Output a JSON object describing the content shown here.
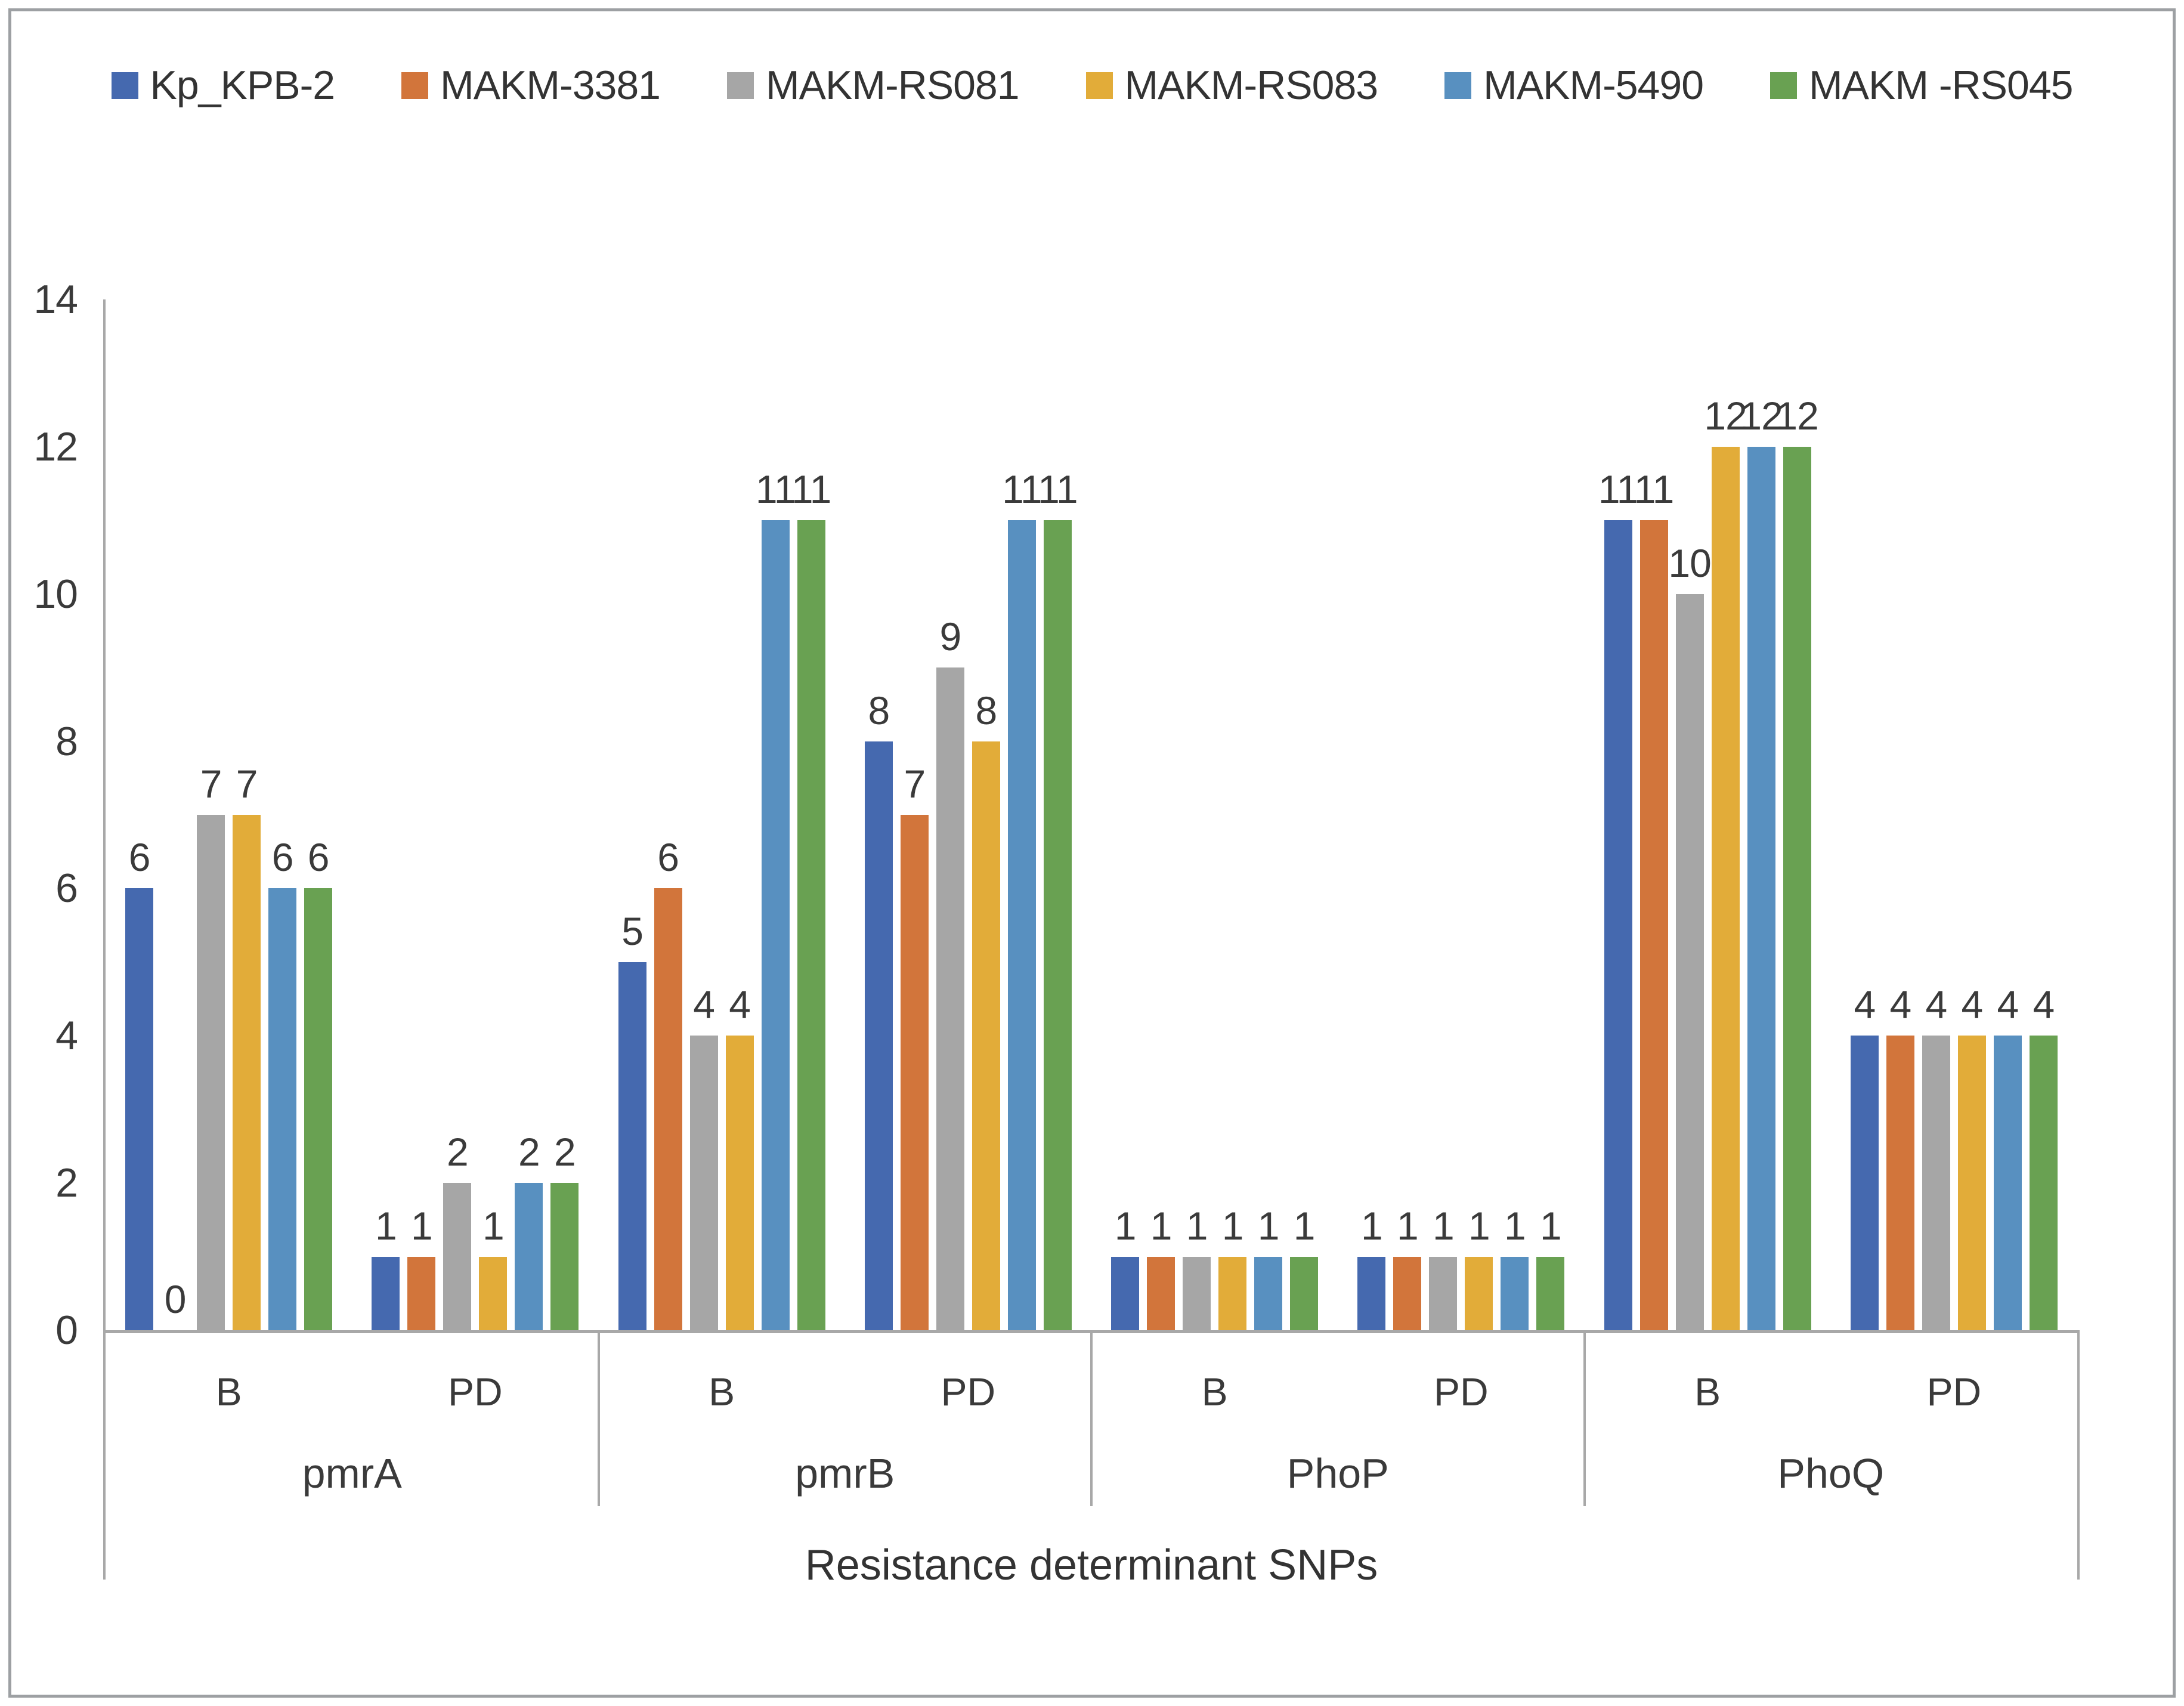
{
  "figure": {
    "border_color": "#9da0a3",
    "background": "#ffffff",
    "text_color": "#3a3a3a",
    "axis_line_color": "#a8a8a8"
  },
  "chart_data": {
    "type": "bar",
    "title": "",
    "xlabel": "Resistance determinant SNPs",
    "ylabel": "",
    "ylim": [
      0,
      14
    ],
    "yticks": [
      0,
      2,
      4,
      6,
      8,
      10,
      12,
      14
    ],
    "grid": false,
    "legend_position": "top",
    "data_labels": true,
    "series": [
      {
        "name": "Kp_KPB-2",
        "color": "#4569af"
      },
      {
        "name": "MAKM-3381",
        "color": "#d2753b"
      },
      {
        "name": "MAKM-RS081",
        "color": "#a6a6a6"
      },
      {
        "name": "MAKM-RS083",
        "color": "#e2ac39"
      },
      {
        "name": "MAKM-5490",
        "color": "#5890c0"
      },
      {
        "name": "MAKM -RS045",
        "color": "#69a152"
      }
    ],
    "groups": [
      {
        "category": "pmrA",
        "subcategories": [
          {
            "label": "B",
            "values": [
              6,
              0,
              7,
              7,
              6,
              6
            ]
          },
          {
            "label": "PD",
            "values": [
              1,
              1,
              2,
              1,
              2,
              2
            ]
          }
        ]
      },
      {
        "category": "pmrB",
        "subcategories": [
          {
            "label": "B",
            "values": [
              5,
              6,
              4,
              4,
              11,
              11
            ]
          },
          {
            "label": "PD",
            "values": [
              8,
              7,
              9,
              8,
              11,
              11
            ]
          }
        ]
      },
      {
        "category": "PhoP",
        "subcategories": [
          {
            "label": "B",
            "values": [
              1,
              1,
              1,
              1,
              1,
              1
            ]
          },
          {
            "label": "PD",
            "values": [
              1,
              1,
              1,
              1,
              1,
              1
            ]
          }
        ]
      },
      {
        "category": "PhoQ",
        "subcategories": [
          {
            "label": "B",
            "values": [
              11,
              11,
              10,
              12,
              12,
              12
            ]
          },
          {
            "label": "PD",
            "values": [
              4,
              4,
              4,
              4,
              4,
              4
            ]
          }
        ]
      }
    ]
  }
}
